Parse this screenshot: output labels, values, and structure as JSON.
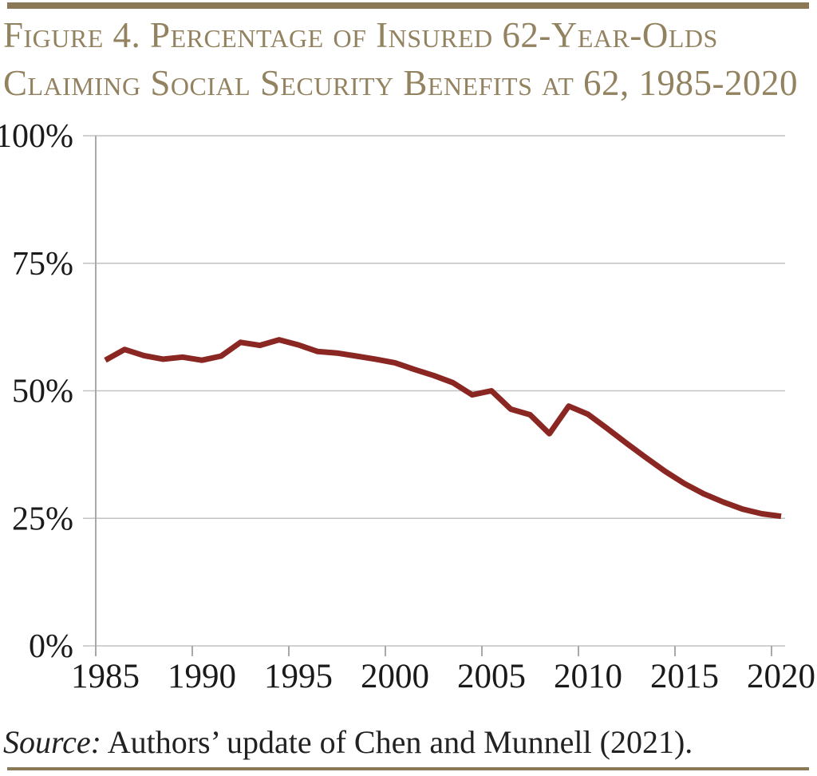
{
  "title": {
    "line1": "Figure 4. Percentage of Insured 62-Year-Olds",
    "line2": "Claiming Social Security Benefits at 62, 1985-2020",
    "color": "#93825f"
  },
  "source": {
    "label": "Source:",
    "text": " Authors’ update of Chen and Munnell (2021)."
  },
  "decoration": {
    "rule_color": "#8a7957"
  },
  "chart_data": {
    "type": "line",
    "title": "Figure 4. Percentage of Insured 62-Year-Olds Claiming Social Security Benefits at 62, 1985-2020",
    "xlabel": "",
    "ylabel": "",
    "x": [
      1985,
      1986,
      1987,
      1988,
      1989,
      1990,
      1991,
      1992,
      1993,
      1994,
      1995,
      1996,
      1997,
      1998,
      1999,
      2000,
      2001,
      2002,
      2003,
      2004,
      2005,
      2006,
      2007,
      2008,
      2009,
      2010,
      2011,
      2012,
      2013,
      2014,
      2015,
      2016,
      2017,
      2018,
      2019,
      2020
    ],
    "series": [
      {
        "name": "Percentage of insured 62-year-olds claiming at 62",
        "color": "#8b2722",
        "values": [
          56.0,
          58.1,
          56.9,
          56.2,
          56.6,
          56.0,
          56.8,
          59.5,
          58.9,
          60.0,
          59.0,
          57.7,
          57.4,
          56.8,
          56.2,
          55.5,
          54.2,
          53.0,
          51.6,
          49.2,
          50.0,
          46.4,
          45.3,
          41.6,
          47.0,
          45.4,
          42.6,
          39.7,
          36.9,
          34.2,
          31.8,
          29.8,
          28.2,
          26.8,
          25.9,
          25.4
        ]
      }
    ],
    "xlim": [
      1985,
      2020
    ],
    "ylim": [
      0,
      100
    ],
    "yticks": [
      0,
      25,
      50,
      75,
      100
    ],
    "ytick_labels": [
      "0%",
      "25%",
      "50%",
      "75%",
      "100%"
    ],
    "xticks": [
      1985,
      1990,
      1995,
      2000,
      2005,
      2010,
      2015,
      2020
    ],
    "xtick_labels": [
      "1985",
      "1990",
      "1995",
      "2000",
      "2005",
      "2010",
      "2015",
      "2020"
    ],
    "grid": "horizontal",
    "legend": "none",
    "grid_color": "#c2c2c2",
    "axis_color": "#a9a9a9",
    "label_color": "#1a1a1a"
  }
}
